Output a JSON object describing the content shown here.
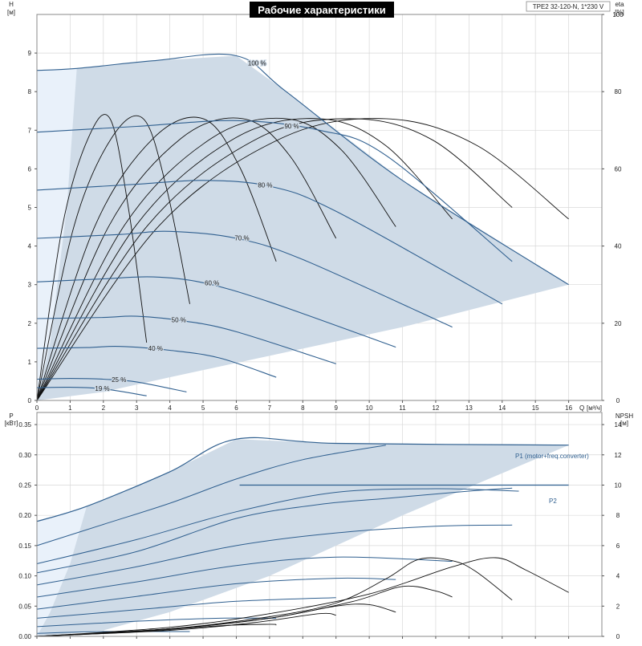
{
  "chart_data": {
    "type": "line",
    "title": "Рабочие характеристики",
    "pump_label": "TPE2 32-120-N, 1*230 V",
    "colors": {
      "fill": "#cfdbe7",
      "fill_light": "#e9f1fa",
      "curve": "#2f5f8f",
      "eta": "#111111",
      "grid": "#d8d8d8"
    },
    "head_plot": {
      "left_axis": {
        "name": "H",
        "unit": "[м]",
        "ylim": [
          0,
          10
        ],
        "ticks": [
          0,
          1,
          2,
          3,
          4,
          5,
          6,
          7,
          8,
          9
        ]
      },
      "right_axis": {
        "name": "eta",
        "unit": "[%]",
        "ylim": [
          0,
          100
        ],
        "ticks": [
          0,
          20,
          40,
          60,
          80,
          100
        ]
      },
      "x_axis": {
        "name": "Q",
        "unit": "[м³/ч]",
        "xlim": [
          0,
          17
        ],
        "ticks": [
          0,
          1,
          2,
          3,
          4,
          5,
          6,
          7,
          8,
          9,
          10,
          11,
          12,
          13,
          14,
          15,
          16
        ]
      },
      "envelope": [
        [
          0,
          8.55
        ],
        [
          1.2,
          8.6
        ],
        [
          3.5,
          8.8
        ],
        [
          6.0,
          8.93
        ],
        [
          7.5,
          8.0
        ],
        [
          11.0,
          5.7
        ],
        [
          16.0,
          3.0
        ],
        [
          11.0,
          1.9
        ],
        [
          7.5,
          1.25
        ],
        [
          4.0,
          0.6
        ],
        [
          2.0,
          0.22
        ],
        [
          0,
          0
        ]
      ],
      "speed_curves": [
        {
          "label": "100 %",
          "points": [
            [
              0,
              8.55
            ],
            [
              1.2,
              8.6
            ],
            [
              3.5,
              8.8
            ],
            [
              6.0,
              8.93
            ],
            [
              7.5,
              8.0
            ],
            [
              11.0,
              5.7
            ],
            [
              16.0,
              3.0
            ]
          ]
        },
        {
          "label": "90 %",
          "points": [
            [
              0,
              6.95
            ],
            [
              3,
              7.1
            ],
            [
              6,
              7.25
            ],
            [
              8.5,
              7.0
            ],
            [
              10.5,
              6.35
            ],
            [
              14.3,
              3.6
            ]
          ]
        },
        {
          "label": "80 %",
          "points": [
            [
              0,
              5.45
            ],
            [
              3,
              5.6
            ],
            [
              5,
              5.7
            ],
            [
              7,
              5.55
            ],
            [
              9,
              4.9
            ],
            [
              14.0,
              2.5
            ]
          ]
        },
        {
          "label": "70 %",
          "points": [
            [
              0,
              4.2
            ],
            [
              2.5,
              4.3
            ],
            [
              4,
              4.38
            ],
            [
              6,
              4.2
            ],
            [
              8,
              3.65
            ],
            [
              12.5,
              1.9
            ]
          ]
        },
        {
          "label": "60 %",
          "points": [
            [
              0,
              3.07
            ],
            [
              2,
              3.15
            ],
            [
              3.5,
              3.2
            ],
            [
              5,
              3.05
            ],
            [
              7,
              2.55
            ],
            [
              10.8,
              1.38
            ]
          ]
        },
        {
          "label": "50 %",
          "points": [
            [
              0,
              2.12
            ],
            [
              2,
              2.15
            ],
            [
              3,
              2.18
            ],
            [
              4.5,
              2.05
            ],
            [
              6,
              1.78
            ],
            [
              9.0,
              0.95
            ]
          ]
        },
        {
          "label": "40 %",
          "points": [
            [
              0,
              1.35
            ],
            [
              1.5,
              1.37
            ],
            [
              2.5,
              1.4
            ],
            [
              4,
              1.3
            ],
            [
              5.5,
              1.1
            ],
            [
              7.2,
              0.6
            ]
          ]
        },
        {
          "label": "25 %",
          "points": [
            [
              0,
              0.55
            ],
            [
              1,
              0.57
            ],
            [
              2,
              0.55
            ],
            [
              3,
              0.48
            ],
            [
              4.5,
              0.22
            ]
          ]
        },
        {
          "label": "19 %",
          "points": [
            [
              0,
              0.33
            ],
            [
              1,
              0.34
            ],
            [
              2,
              0.3
            ],
            [
              3.3,
              0.12
            ]
          ]
        }
      ],
      "efficiency_curves": [
        {
          "peak_q": 10.5,
          "end_q": 16.0,
          "end_eta": 47
        },
        {
          "peak_q": 9.5,
          "end_q": 14.3,
          "end_eta": 50
        },
        {
          "peak_q": 8.5,
          "end_q": 12.5,
          "end_eta": 47
        },
        {
          "peak_q": 7.5,
          "end_q": 10.8,
          "end_eta": 45
        },
        {
          "peak_q": 6.2,
          "end_q": 9.0,
          "end_eta": 42
        },
        {
          "peak_q": 5.0,
          "end_q": 7.2,
          "end_eta": 36
        },
        {
          "peak_q": 3.2,
          "end_q": 4.6,
          "end_eta": 25
        },
        {
          "peak_q": 2.2,
          "end_q": 3.3,
          "end_eta": 15
        }
      ],
      "efficiency_peak": 73
    },
    "power_plot": {
      "left_axis": {
        "name": "P",
        "unit": "[кВт]",
        "ylim": [
          0,
          0.37
        ],
        "ticks": [
          0.0,
          0.05,
          0.1,
          0.15,
          0.2,
          0.25,
          0.3,
          0.35
        ]
      },
      "right_axis": {
        "name": "NPSH",
        "unit": "[м]",
        "ylim": [
          0,
          14.8
        ],
        "ticks": [
          0,
          2,
          4,
          6,
          8,
          10,
          12,
          14
        ]
      },
      "x_axis": {
        "xlim": [
          0,
          17
        ]
      },
      "envelope": [
        [
          0,
          0.19
        ],
        [
          1.5,
          0.215
        ],
        [
          4,
          0.272
        ],
        [
          6,
          0.326
        ],
        [
          9,
          0.319
        ],
        [
          16,
          0.316
        ],
        [
          11,
          0.2
        ],
        [
          7,
          0.1
        ],
        [
          4,
          0.04
        ],
        [
          2,
          0.01
        ],
        [
          0,
          0
        ]
      ],
      "series": [
        {
          "name": "P1 (motor+freq.converter)",
          "points": [
            [
              0,
              0.19
            ],
            [
              1.5,
              0.215
            ],
            [
              4,
              0.272
            ],
            [
              6,
              0.326
            ],
            [
              9,
              0.319
            ],
            [
              16,
              0.316
            ]
          ]
        },
        {
          "name": "P2",
          "points": [
            [
              6.1,
              0.25
            ],
            [
              16,
              0.25
            ]
          ]
        }
      ],
      "lower_curves": [
        [
          [
            0,
            0.15
          ],
          [
            2,
            0.185
          ],
          [
            4,
            0.22
          ],
          [
            6,
            0.26
          ],
          [
            8,
            0.292
          ],
          [
            10.5,
            0.316
          ]
        ],
        [
          [
            0,
            0.12
          ],
          [
            3,
            0.16
          ],
          [
            6,
            0.206
          ],
          [
            9,
            0.238
          ],
          [
            12,
            0.244
          ],
          [
            14.5,
            0.24
          ]
        ],
        [
          [
            0,
            0.105
          ],
          [
            3,
            0.14
          ],
          [
            6,
            0.195
          ],
          [
            8.5,
            0.218
          ],
          [
            10.5,
            0.228
          ],
          [
            13,
            0.24
          ],
          [
            14.3,
            0.245
          ]
        ],
        [
          [
            0,
            0.085
          ],
          [
            3,
            0.115
          ],
          [
            6,
            0.15
          ],
          [
            9,
            0.171
          ],
          [
            12,
            0.182
          ],
          [
            14.3,
            0.184
          ]
        ],
        [
          [
            0,
            0.065
          ],
          [
            3,
            0.09
          ],
          [
            6,
            0.117
          ],
          [
            9,
            0.131
          ],
          [
            12.5,
            0.124
          ]
        ],
        [
          [
            0,
            0.045
          ],
          [
            3,
            0.066
          ],
          [
            6,
            0.087
          ],
          [
            9,
            0.096
          ],
          [
            10.8,
            0.094
          ]
        ],
        [
          [
            0,
            0.03
          ],
          [
            3,
            0.044
          ],
          [
            6,
            0.058
          ],
          [
            9,
            0.064
          ]
        ],
        [
          [
            0,
            0.016
          ],
          [
            3,
            0.025
          ],
          [
            5.5,
            0.03
          ],
          [
            7.2,
            0.03
          ]
        ],
        [
          [
            0,
            0.005
          ],
          [
            2,
            0.008
          ],
          [
            4.6,
            0.008
          ]
        ]
      ],
      "npsh_curves": [
        [
          [
            0,
            0.0
          ],
          [
            4,
            0.5
          ],
          [
            7,
            1.3
          ],
          [
            9,
            2.2
          ],
          [
            10.5,
            3.8
          ],
          [
            11.5,
            5.1
          ],
          [
            12.5,
            5.0
          ],
          [
            13.2,
            4.3
          ],
          [
            14.3,
            2.4
          ]
        ],
        [
          [
            0,
            0.0
          ],
          [
            4,
            0.6
          ],
          [
            7,
            1.5
          ],
          [
            10,
            2.8
          ],
          [
            12.5,
            4.6
          ],
          [
            13.8,
            5.2
          ],
          [
            14.7,
            4.4
          ],
          [
            16,
            2.9
          ]
        ],
        [
          [
            0,
            0.0
          ],
          [
            4,
            0.5
          ],
          [
            7,
            1.2
          ],
          [
            9.5,
            2.3
          ],
          [
            11,
            3.3
          ],
          [
            12,
            3.0
          ],
          [
            12.5,
            2.6
          ]
        ],
        [
          [
            0,
            0.0
          ],
          [
            4,
            0.5
          ],
          [
            7,
            1.2
          ],
          [
            9,
            2.0
          ],
          [
            10,
            2.1
          ],
          [
            10.8,
            1.6
          ]
        ],
        [
          [
            0,
            0.0
          ],
          [
            4,
            0.4
          ],
          [
            6.5,
            0.9
          ],
          [
            8.5,
            1.5
          ],
          [
            9,
            1.4
          ]
        ],
        [
          [
            0,
            0.0
          ],
          [
            3,
            0.3
          ],
          [
            5.5,
            0.7
          ],
          [
            7,
            0.8
          ],
          [
            7.2,
            0.75
          ]
        ]
      ]
    }
  }
}
